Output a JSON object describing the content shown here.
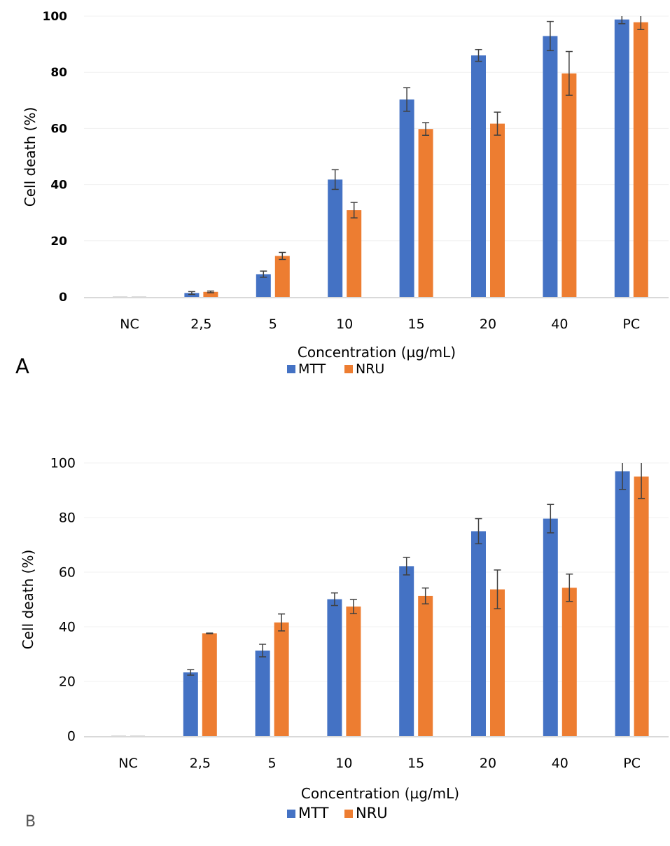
{
  "colors": {
    "MTT": "#4472C4",
    "NRU": "#ED7D31",
    "error_bar": "#404040",
    "grid": "#F0F0F0",
    "axis": "#D9D9D9"
  },
  "chart_data": [
    {
      "panel_label": "A",
      "type": "bar",
      "xlabel": "Concentration  (µg/mL)",
      "ylabel": "Cell death (%)",
      "ylim": [
        0,
        100
      ],
      "yticks": [
        "0",
        "20",
        "40",
        "60",
        "80",
        "100"
      ],
      "grid": true,
      "legend_placement": "bottom",
      "categories": [
        "NC",
        "2,5",
        "5",
        "10",
        "15",
        "20",
        "40",
        "PC"
      ],
      "series": [
        {
          "name": "MTT",
          "values": [
            0,
            1.4,
            8.1,
            41.8,
            70.3,
            86.0,
            92.9,
            98.8
          ],
          "errors": [
            0,
            0.5,
            1.1,
            3.5,
            4.2,
            2.1,
            5.2,
            1.5
          ]
        },
        {
          "name": "NRU",
          "values": [
            0,
            1.8,
            14.6,
            30.9,
            59.8,
            61.7,
            79.6,
            97.8
          ],
          "errors": [
            0,
            0.3,
            1.25,
            2.75,
            2.25,
            4.1,
            7.8,
            2.6
          ]
        }
      ]
    },
    {
      "panel_label": "B",
      "type": "bar",
      "xlabel": "Concentration  (µg/mL)",
      "ylabel": "Cell death (%)",
      "ylim": [
        0,
        100
      ],
      "yticks": [
        "0",
        "20",
        "40",
        "60",
        "80",
        "100"
      ],
      "grid": true,
      "legend_placement": "bottom",
      "categories": [
        "NC",
        "2,5",
        "5",
        "10",
        "15",
        "20",
        "40",
        "PC"
      ],
      "series": [
        {
          "name": "MTT",
          "values": [
            0,
            23.3,
            31.3,
            50.1,
            62.2,
            75.0,
            79.6,
            96.9
          ],
          "errors": [
            0,
            1.0,
            2.3,
            2.3,
            3.2,
            4.6,
            5.2,
            6.6
          ]
        },
        {
          "name": "NRU",
          "values": [
            0,
            37.6,
            41.6,
            47.4,
            51.3,
            53.7,
            54.3,
            95.0
          ],
          "errors": [
            0,
            0.1,
            3.1,
            2.6,
            2.9,
            7.1,
            5.0,
            8.0
          ]
        }
      ]
    }
  ]
}
